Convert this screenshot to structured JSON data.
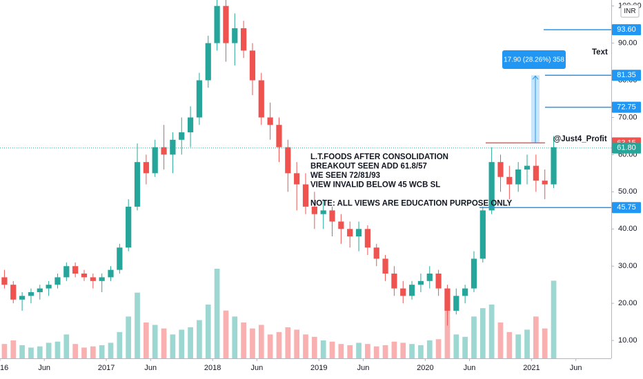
{
  "chart_data": {
    "type": "candlestick",
    "currency": "INR",
    "x": [
      "2016-01",
      "2016-02",
      "2016-03",
      "2016-04",
      "2016-05",
      "2016-06",
      "2016-07",
      "2016-08",
      "2016-09",
      "2016-10",
      "2016-11",
      "2016-12",
      "2017-01",
      "2017-02",
      "2017-03",
      "2017-04",
      "2017-05",
      "2017-06",
      "2017-07",
      "2017-08",
      "2017-09",
      "2017-10",
      "2017-11",
      "2017-12",
      "2018-01",
      "2018-02",
      "2018-03",
      "2018-04",
      "2018-05",
      "2018-06",
      "2018-07",
      "2018-08",
      "2018-09",
      "2018-10",
      "2018-11",
      "2018-12",
      "2019-01",
      "2019-02",
      "2019-03",
      "2019-04",
      "2019-05",
      "2019-06",
      "2019-07",
      "2019-08",
      "2019-09",
      "2019-10",
      "2019-11",
      "2019-12",
      "2020-01",
      "2020-02",
      "2020-03",
      "2020-04",
      "2020-05",
      "2020-06",
      "2020-07",
      "2020-08",
      "2020-09",
      "2020-10",
      "2020-11",
      "2020-12",
      "2021-01",
      "2021-02",
      "2021-03"
    ],
    "open": [
      27,
      25,
      21,
      22,
      23,
      24,
      25,
      27,
      30,
      28,
      27,
      26,
      27,
      29,
      35,
      46,
      58,
      55,
      62,
      60,
      64,
      66,
      70,
      80,
      90,
      100,
      90,
      94,
      88,
      80,
      70,
      68,
      62,
      55,
      52,
      46,
      44,
      45,
      42,
      40,
      38,
      40,
      35,
      32,
      28,
      24,
      22,
      25,
      26,
      28,
      24,
      18,
      22,
      24,
      32,
      45,
      58,
      54,
      52,
      56,
      57,
      53,
      52
    ],
    "high": [
      29,
      26,
      23,
      24,
      25,
      26,
      28,
      31,
      31,
      29,
      28,
      28,
      30,
      36,
      48,
      63,
      60,
      64,
      68,
      66,
      70,
      73,
      82,
      92,
      106,
      104,
      98,
      96,
      90,
      82,
      74,
      70,
      64,
      58,
      55,
      50,
      48,
      46,
      44,
      42,
      42,
      41,
      36,
      33,
      30,
      26,
      26,
      28,
      30,
      29,
      25,
      24,
      25,
      34,
      46,
      62,
      60,
      57,
      58,
      60,
      60,
      56,
      65
    ],
    "low": [
      24,
      20,
      18,
      20,
      21,
      22,
      24,
      26,
      27,
      26,
      24,
      23,
      26,
      28,
      34,
      45,
      52,
      54,
      56,
      55,
      60,
      62,
      68,
      78,
      88,
      85,
      84,
      86,
      76,
      68,
      64,
      58,
      50,
      45,
      44,
      40,
      40,
      38,
      36,
      35,
      34,
      33,
      30,
      26,
      22,
      20,
      21,
      23,
      24,
      22,
      14,
      17,
      20,
      23,
      31,
      44,
      50,
      48,
      50,
      52,
      50,
      48,
      51
    ],
    "close": [
      25,
      21,
      22,
      23,
      24,
      25,
      27,
      30,
      28,
      27,
      26,
      27,
      29,
      35,
      46,
      58,
      55,
      62,
      60,
      64,
      66,
      70,
      80,
      90,
      100,
      90,
      94,
      88,
      80,
      70,
      68,
      62,
      55,
      52,
      46,
      44,
      45,
      42,
      40,
      38,
      40,
      35,
      32,
      28,
      24,
      22,
      25,
      26,
      28,
      24,
      18,
      22,
      24,
      32,
      45,
      58,
      54,
      52,
      56,
      57,
      53,
      52,
      62
    ],
    "volume": [
      1.2,
      1.5,
      1.1,
      0.9,
      1.0,
      1.3,
      1.4,
      2.0,
      1.2,
      0.9,
      1.0,
      1.1,
      1.3,
      2.2,
      3.5,
      5.5,
      3.0,
      2.8,
      2.5,
      2.0,
      2.4,
      2.6,
      3.2,
      4.5,
      7.5,
      4.0,
      3.5,
      3.0,
      2.5,
      2.8,
      2.0,
      2.2,
      2.6,
      2.4,
      2.0,
      1.8,
      1.5,
      1.4,
      1.2,
      1.1,
      1.3,
      1.2,
      1.0,
      1.1,
      1.4,
      1.3,
      1.2,
      1.1,
      1.5,
      1.6,
      4.8,
      2.0,
      1.8,
      3.5,
      4.2,
      4.5,
      3.0,
      2.2,
      2.0,
      2.4,
      3.5,
      2.5,
      6.5
    ],
    "up_color": "#26a69a",
    "down_color": "#ef5350",
    "ylim": [
      5.2,
      101.6
    ],
    "yticks": [
      {
        "value": 10,
        "label": "10.00"
      },
      {
        "value": 20,
        "label": "20.00"
      },
      {
        "value": 30,
        "label": "30.00"
      },
      {
        "value": 40,
        "label": "40.00"
      },
      {
        "value": 50,
        "label": "50.00"
      },
      {
        "value": 60,
        "label": "60.00"
      },
      {
        "value": 70,
        "label": "70.00"
      },
      {
        "value": 80,
        "label": "80.00"
      },
      {
        "value": 90,
        "label": "90.00"
      },
      {
        "value": 100,
        "label": "100.00"
      }
    ],
    "xlim": [
      "2016-01",
      "2021-10"
    ],
    "xticks": [
      {
        "value": "2016-01",
        "label": "16"
      },
      {
        "value": "2016-06",
        "label": "Jun"
      },
      {
        "value": "2017-01",
        "label": "2017"
      },
      {
        "value": "2017-06",
        "label": "Jun"
      },
      {
        "value": "2018-01",
        "label": "2018"
      },
      {
        "value": "2018-06",
        "label": "Jun"
      },
      {
        "value": "2019-01",
        "label": "2019"
      },
      {
        "value": "2019-06",
        "label": "Jun"
      },
      {
        "value": "2020-01",
        "label": "2020"
      },
      {
        "value": "2020-06",
        "label": "Jun"
      },
      {
        "value": "2021-01",
        "label": "2021"
      },
      {
        "value": "2021-06",
        "label": "Jun"
      }
    ],
    "grid": false,
    "levels": [
      {
        "value": 93.6,
        "label": "93.60",
        "color": "#2196f3"
      },
      {
        "value": 81.35,
        "label": "81.35",
        "color": "#2196f3"
      },
      {
        "value": 72.75,
        "label": "72.75",
        "color": "#2196f3"
      },
      {
        "value": 63.15,
        "label": "63.15",
        "color": "#ef5350"
      },
      {
        "value": 61.8,
        "label": "61.80",
        "color": "#26a69a"
      },
      {
        "value": 45.75,
        "label": "45.75",
        "color": "#2196f3"
      }
    ],
    "measure_label": "17.90 (28.26%) 358",
    "annotations": [
      "L.T.FOODS AFTER CONSOLIDATION",
      "BREAKOUT SEEN ADD 61.8/57",
      "WE SEEN 72/81/93",
      "VIEW INVALID BELOW 45 WCB SL",
      "",
      "NOTE: ALL VIEWS ARE EDUCATION PURPOSE ONLY"
    ],
    "author": "@Just4_Profit",
    "text_label": "Text"
  }
}
